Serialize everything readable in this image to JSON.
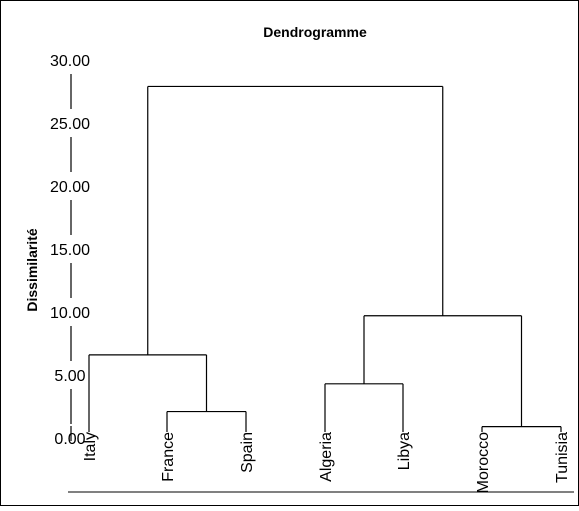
{
  "chart_data": {
    "type": "dendrogram",
    "title": "Dendrogramme",
    "ylabel": "Dissimilarité",
    "ylim": [
      0,
      30
    ],
    "yticks": [
      "0.00",
      "5.00",
      "10.00",
      "15.00",
      "20.00",
      "25.00",
      "30.00"
    ],
    "ytick_values": [
      0,
      5,
      10,
      15,
      20,
      25,
      30
    ],
    "leaves": [
      "Italy",
      "France",
      "Spain",
      "Algeria",
      "Libya",
      "Morocco",
      "Tunisia"
    ],
    "merges": [
      {
        "left": "France",
        "right": "Spain",
        "height": 2.1
      },
      {
        "left": "Morocco",
        "right": "Tunisia",
        "height": 0.9
      },
      {
        "left": "Algeria",
        "right": "Libya",
        "height": 4.3
      },
      {
        "left": "Italy",
        "right": "France+Spain",
        "height": 6.6
      },
      {
        "left": "Algeria+Libya",
        "right": "Morocco+Tunisia",
        "height": 9.7
      },
      {
        "left": "Italy+France+Spain",
        "right": "Algeria+Libya+Morocco+Tunisia",
        "height": 27.9
      }
    ],
    "line_color": "#000000",
    "background": "#ffffff",
    "grid": false
  }
}
